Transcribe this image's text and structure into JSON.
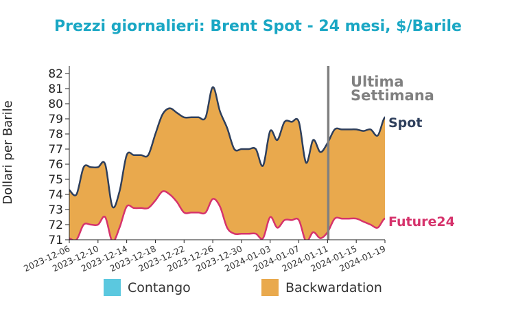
{
  "chart_data": {
    "type": "area",
    "title": "Prezzi giornalieri: Brent Spot - 24 mesi, $/Barile",
    "ylabel": "Dollari per Barile",
    "xlabel": "",
    "ylim": [
      71,
      82.5
    ],
    "yticks": [
      71,
      72,
      73,
      74,
      75,
      76,
      77,
      78,
      79,
      80,
      81,
      82
    ],
    "x_date_range": [
      "2023-12-06",
      "2024-01-19"
    ],
    "xticks": [
      "2023-12-06",
      "2023-12-10",
      "2023-12-14",
      "2023-12-18",
      "2023-12-22",
      "2023-12-26",
      "2023-12-30",
      "2024-01-03",
      "2024-01-07",
      "2024-01-11",
      "2024-01-15",
      "2024-01-19"
    ],
    "grid": false,
    "legend_position": "bottom",
    "legend": [
      {
        "label": "Contango",
        "color": "#5bc8df"
      },
      {
        "label": "Backwardation",
        "color": "#e9a94d"
      }
    ],
    "vline": {
      "x": "2024-01-11",
      "label_line1": "Ultima",
      "label_line2": "Settimana",
      "color": "#808080"
    },
    "series": [
      {
        "name": "Spot",
        "color": "#2e3f5c",
        "points": [
          [
            "2023-12-06",
            74.3
          ],
          [
            "2023-12-07",
            74.0
          ],
          [
            "2023-12-08",
            75.8
          ],
          [
            "2023-12-09",
            75.8
          ],
          [
            "2023-12-10",
            75.8
          ],
          [
            "2023-12-11",
            76.0
          ],
          [
            "2023-12-12",
            73.2
          ],
          [
            "2023-12-13",
            74.2
          ],
          [
            "2023-12-14",
            76.6
          ],
          [
            "2023-12-15",
            76.6
          ],
          [
            "2023-12-16",
            76.6
          ],
          [
            "2023-12-17",
            76.6
          ],
          [
            "2023-12-18",
            78.0
          ],
          [
            "2023-12-19",
            79.3
          ],
          [
            "2023-12-20",
            79.7
          ],
          [
            "2023-12-21",
            79.4
          ],
          [
            "2023-12-22",
            79.1
          ],
          [
            "2023-12-23",
            79.1
          ],
          [
            "2023-12-24",
            79.1
          ],
          [
            "2023-12-25",
            79.1
          ],
          [
            "2023-12-26",
            81.1
          ],
          [
            "2023-12-27",
            79.5
          ],
          [
            "2023-12-28",
            78.4
          ],
          [
            "2023-12-29",
            77.0
          ],
          [
            "2023-12-30",
            77.0
          ],
          [
            "2023-12-31",
            77.0
          ],
          [
            "2024-01-01",
            77.0
          ],
          [
            "2024-01-02",
            75.9
          ],
          [
            "2024-01-03",
            78.2
          ],
          [
            "2024-01-04",
            77.6
          ],
          [
            "2024-01-05",
            78.8
          ],
          [
            "2024-01-06",
            78.8
          ],
          [
            "2024-01-07",
            78.8
          ],
          [
            "2024-01-08",
            76.1
          ],
          [
            "2024-01-09",
            77.6
          ],
          [
            "2024-01-10",
            76.8
          ],
          [
            "2024-01-11",
            77.4
          ],
          [
            "2024-01-12",
            78.3
          ],
          [
            "2024-01-13",
            78.3
          ],
          [
            "2024-01-14",
            78.3
          ],
          [
            "2024-01-15",
            78.3
          ],
          [
            "2024-01-16",
            78.2
          ],
          [
            "2024-01-17",
            78.3
          ],
          [
            "2024-01-18",
            77.9
          ],
          [
            "2024-01-19",
            79.1
          ],
          [
            "2024-01-20",
            78.6
          ]
        ]
      },
      {
        "name": "Future24",
        "color": "#d6336c",
        "points": [
          [
            "2023-12-06",
            71.1
          ],
          [
            "2023-12-07",
            71.0
          ],
          [
            "2023-12-08",
            72.0
          ],
          [
            "2023-12-09",
            72.0
          ],
          [
            "2023-12-10",
            72.0
          ],
          [
            "2023-12-11",
            72.5
          ],
          [
            "2023-12-12",
            70.9
          ],
          [
            "2023-12-13",
            71.8
          ],
          [
            "2023-12-14",
            73.2
          ],
          [
            "2023-12-15",
            73.1
          ],
          [
            "2023-12-16",
            73.1
          ],
          [
            "2023-12-17",
            73.1
          ],
          [
            "2023-12-18",
            73.6
          ],
          [
            "2023-12-19",
            74.2
          ],
          [
            "2023-12-20",
            74.0
          ],
          [
            "2023-12-21",
            73.5
          ],
          [
            "2023-12-22",
            72.8
          ],
          [
            "2023-12-23",
            72.8
          ],
          [
            "2023-12-24",
            72.8
          ],
          [
            "2023-12-25",
            72.8
          ],
          [
            "2023-12-26",
            73.7
          ],
          [
            "2023-12-27",
            73.2
          ],
          [
            "2023-12-28",
            71.8
          ],
          [
            "2023-12-29",
            71.4
          ],
          [
            "2023-12-30",
            71.4
          ],
          [
            "2023-12-31",
            71.4
          ],
          [
            "2024-01-01",
            71.4
          ],
          [
            "2024-01-02",
            71.1
          ],
          [
            "2024-01-03",
            72.5
          ],
          [
            "2024-01-04",
            71.8
          ],
          [
            "2024-01-05",
            72.3
          ],
          [
            "2024-01-06",
            72.3
          ],
          [
            "2024-01-07",
            72.3
          ],
          [
            "2024-01-08",
            70.9
          ],
          [
            "2024-01-09",
            71.5
          ],
          [
            "2024-01-10",
            71.1
          ],
          [
            "2024-01-11",
            71.5
          ],
          [
            "2024-01-12",
            72.4
          ],
          [
            "2024-01-13",
            72.4
          ],
          [
            "2024-01-14",
            72.4
          ],
          [
            "2024-01-15",
            72.4
          ],
          [
            "2024-01-16",
            72.2
          ],
          [
            "2024-01-17",
            72.0
          ],
          [
            "2024-01-18",
            71.8
          ],
          [
            "2024-01-19",
            72.4
          ],
          [
            "2024-01-20",
            72.0
          ]
        ]
      }
    ]
  }
}
